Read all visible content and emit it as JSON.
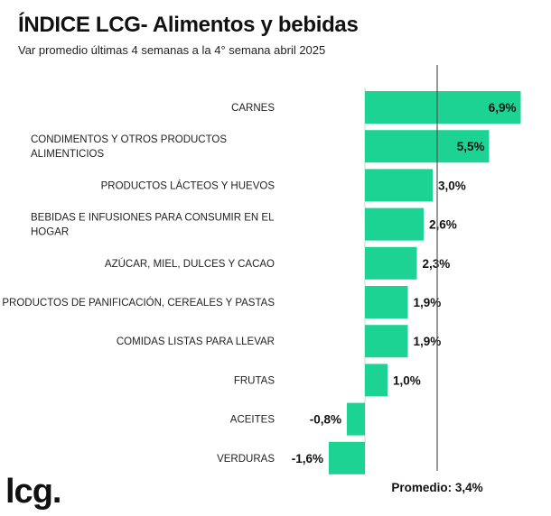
{
  "title": "ÍNDICE LCG- Alimentos y bebidas",
  "subtitle": "Var promedio últimas 4 semanas a la 4° semana abril 2025",
  "brand": "lcg.",
  "average_label": "Promedio: 3,4%",
  "colors": {
    "bar": "#1dd394",
    "avg_line": "#555555"
  },
  "chart_data": {
    "type": "bar",
    "orientation": "horizontal",
    "categories": [
      [
        "CARNES"
      ],
      [
        "CONDIMENTOS Y OTROS PRODUCTOS",
        "ALIMENTICIOS"
      ],
      [
        "PRODUCTOS LÁCTEOS Y HUEVOS"
      ],
      [
        "BEBIDAS E INFUSIONES PARA CONSUMIR EN EL",
        "HOGAR"
      ],
      [
        "AZÚCAR, MIEL, DULCES Y CACAO"
      ],
      [
        "PRODUCTOS DE PANIFICACIÓN, CEREALES Y PASTAS"
      ],
      [
        "COMIDAS LISTAS PARA LLEVAR"
      ],
      [
        "FRUTAS"
      ],
      [
        "ACEITES"
      ],
      [
        "VERDURAS"
      ]
    ],
    "values": [
      6.9,
      5.5,
      3.0,
      2.6,
      2.3,
      1.9,
      1.9,
      1.0,
      -0.8,
      -1.6
    ],
    "value_labels": [
      "6,9%",
      "5,5%",
      "3,0%",
      "2,6%",
      "2,3%",
      "1,9%",
      "1,9%",
      "1,0%",
      "-0,8%",
      "-1,6%"
    ],
    "average": 3.4
  }
}
